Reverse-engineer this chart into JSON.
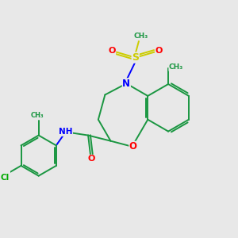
{
  "bg_color": "#e8e8e8",
  "atom_colors": {
    "C": "#1a9641",
    "N": "#0000ff",
    "O": "#ff0000",
    "S": "#cccc00",
    "Cl": "#00aa00",
    "H": "#333333"
  },
  "bond_color": "#1a9641",
  "bond_lw": 1.4,
  "figsize": [
    3.0,
    3.0
  ],
  "dpi": 100,
  "xlim": [
    0,
    10
  ],
  "ylim": [
    0,
    10
  ]
}
